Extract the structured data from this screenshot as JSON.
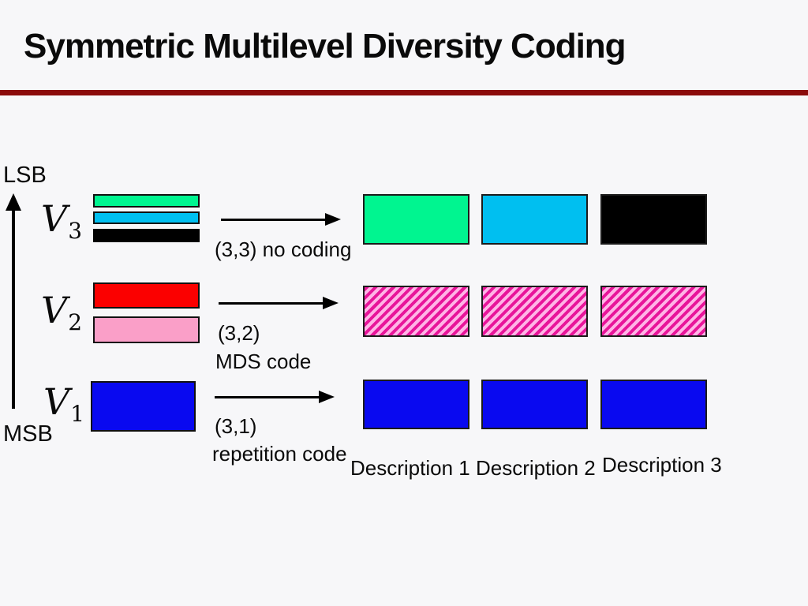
{
  "slide": {
    "title": "Symmetric Multilevel Diversity Coding"
  },
  "bit_axis": {
    "top": "LSB",
    "bottom": "MSB"
  },
  "levels": [
    {
      "symbol": "V",
      "subscript": "3",
      "code_lines": [
        "(3,3) no coding"
      ],
      "source_bars": [
        "green",
        "cyan",
        "black"
      ],
      "output_fills": [
        "green",
        "cyan",
        "black"
      ]
    },
    {
      "symbol": "V",
      "subscript": "2",
      "code_lines": [
        "(3,2)",
        "MDS code"
      ],
      "source_bars": [
        "red",
        "pink"
      ],
      "output_fills": [
        "pink-hatched",
        "pink-hatched",
        "pink-hatched"
      ]
    },
    {
      "symbol": "V",
      "subscript": "1",
      "code_lines": [
        "(3,1)",
        "repetition code"
      ],
      "source_bars": [
        "blue"
      ],
      "output_fills": [
        "blue",
        "blue",
        "blue"
      ]
    }
  ],
  "descriptions": [
    "Description 1",
    "Description 2",
    "Description 3"
  ],
  "colors": {
    "background": "#F7F7F9",
    "ink": "#0A0A0A",
    "rule": "#8B0B0B",
    "green": "#00F590",
    "cyan": "#00BFF0",
    "black_box": "#000000",
    "red": "#FB0000",
    "pink": "#FA9FC8",
    "blue": "#0909F0",
    "hatch_stripe": "#E8159A",
    "hatch_bg": "#FFB4E6"
  }
}
